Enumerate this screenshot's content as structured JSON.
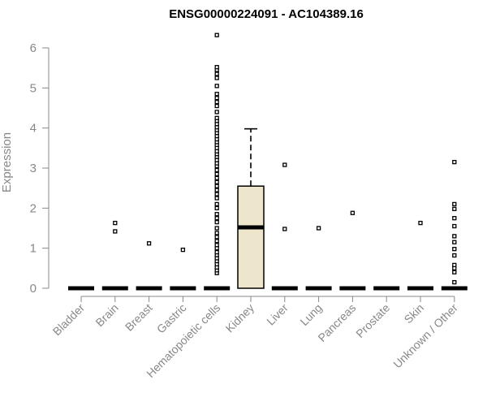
{
  "chart_data": {
    "type": "box",
    "title": "ENSG00000224091 - AC104389.16",
    "xlabel": "",
    "ylabel": "Expression",
    "ylim": [
      0,
      6.4
    ],
    "yticks": [
      0,
      1,
      2,
      3,
      4,
      5,
      6
    ],
    "grid": false,
    "categories": [
      "Bladder",
      "Brain",
      "Breast",
      "Gastric",
      "Hematopoietic cells",
      "Kidney",
      "Liver",
      "Lung",
      "Pancreas",
      "Prostate",
      "Skin",
      "Unknown / Other"
    ],
    "box_fill": "#ede6cc",
    "boxes": [
      {
        "category": "Bladder",
        "q1": 0,
        "median": 0,
        "q3": 0,
        "whisker_low": 0,
        "whisker_high": 0,
        "outliers": []
      },
      {
        "category": "Brain",
        "q1": 0,
        "median": 0,
        "q3": 0,
        "whisker_low": 0,
        "whisker_high": 0,
        "outliers": [
          1.42,
          1.63
        ]
      },
      {
        "category": "Breast",
        "q1": 0,
        "median": 0,
        "q3": 0,
        "whisker_low": 0,
        "whisker_high": 0,
        "outliers": [
          1.12
        ]
      },
      {
        "category": "Gastric",
        "q1": 0,
        "median": 0,
        "q3": 0,
        "whisker_low": 0,
        "whisker_high": 0,
        "outliers": [
          0.96
        ]
      },
      {
        "category": "Hematopoietic cells",
        "q1": 0,
        "median": 0,
        "q3": 0,
        "whisker_low": 0,
        "whisker_high": 0,
        "outliers": [
          0.38,
          0.45,
          0.52,
          0.6,
          0.68,
          0.75,
          0.83,
          0.9,
          1.0,
          1.08,
          1.18,
          1.28,
          1.38,
          1.5,
          1.65,
          1.75,
          1.85,
          2.0,
          2.1,
          2.25,
          2.35,
          2.45,
          2.55,
          2.65,
          2.75,
          2.85,
          2.95,
          3.05,
          3.12,
          3.2,
          3.28,
          3.35,
          3.42,
          3.5,
          3.58,
          3.65,
          3.72,
          3.8,
          3.88,
          3.95,
          4.02,
          4.1,
          4.18,
          4.25,
          4.4,
          4.55,
          4.65,
          4.75,
          4.85,
          5.05,
          5.25,
          5.35,
          5.45,
          5.52,
          6.32
        ]
      },
      {
        "category": "Kidney",
        "q1": 0,
        "median": 1.52,
        "q3": 2.55,
        "whisker_low": 0,
        "whisker_high": 3.98,
        "outliers": []
      },
      {
        "category": "Liver",
        "q1": 0,
        "median": 0,
        "q3": 0,
        "whisker_low": 0,
        "whisker_high": 0,
        "outliers": [
          1.48,
          3.08
        ]
      },
      {
        "category": "Lung",
        "q1": 0,
        "median": 0,
        "q3": 0,
        "whisker_low": 0,
        "whisker_high": 0,
        "outliers": [
          1.5
        ]
      },
      {
        "category": "Pancreas",
        "q1": 0,
        "median": 0,
        "q3": 0,
        "whisker_low": 0,
        "whisker_high": 0,
        "outliers": [
          1.88
        ]
      },
      {
        "category": "Prostate",
        "q1": 0,
        "median": 0,
        "q3": 0,
        "whisker_low": 0,
        "whisker_high": 0,
        "outliers": []
      },
      {
        "category": "Skin",
        "q1": 0,
        "median": 0,
        "q3": 0,
        "whisker_low": 0,
        "whisker_high": 0,
        "outliers": [
          1.63
        ]
      },
      {
        "category": "Unknown / Other",
        "q1": 0,
        "median": 0,
        "q3": 0,
        "whisker_low": 0,
        "whisker_high": 0,
        "outliers": [
          0.15,
          0.4,
          0.5,
          0.58,
          0.82,
          0.98,
          1.15,
          1.3,
          1.55,
          1.75,
          1.98,
          2.1,
          3.15
        ]
      }
    ]
  }
}
